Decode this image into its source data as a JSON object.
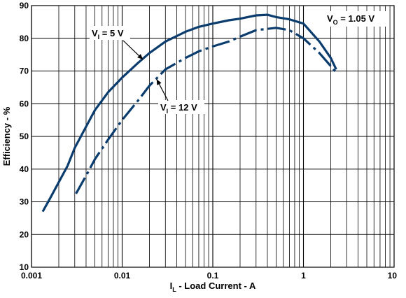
{
  "chart_data": {
    "type": "line",
    "x_scale": "log",
    "xlim": [
      0.001,
      10
    ],
    "ylim": [
      10,
      90
    ],
    "xlabel": {
      "main": "I",
      "sub": "L",
      "rest": " - Load Current - A"
    },
    "ylabel": "Efficiency - %",
    "x_ticks": [
      {
        "value": 0.001,
        "label": "0.001"
      },
      {
        "value": 0.01,
        "label": "0.01"
      },
      {
        "value": 0.1,
        "label": "0.1"
      },
      {
        "value": 1,
        "label": "1"
      },
      {
        "value": 10,
        "label": "10"
      }
    ],
    "y_ticks": [
      10,
      20,
      30,
      40,
      50,
      60,
      70,
      80,
      90
    ],
    "grid": true,
    "annotations": [
      {
        "main": "V",
        "sub": "O",
        "rest": " = 1.05 V"
      }
    ],
    "series": [
      {
        "label": {
          "main": "V",
          "sub": "I",
          "rest": " = 5 V"
        },
        "style": "solid",
        "color": "#0b3c6e",
        "points": [
          [
            0.00133,
            27
          ],
          [
            0.0016,
            31
          ],
          [
            0.002,
            36
          ],
          [
            0.0025,
            41
          ],
          [
            0.003,
            46.5
          ],
          [
            0.004,
            53
          ],
          [
            0.005,
            58
          ],
          [
            0.007,
            63.5
          ],
          [
            0.01,
            68
          ],
          [
            0.015,
            72.5
          ],
          [
            0.02,
            75.5
          ],
          [
            0.03,
            79
          ],
          [
            0.05,
            82
          ],
          [
            0.07,
            83.5
          ],
          [
            0.1,
            84.5
          ],
          [
            0.15,
            85.5
          ],
          [
            0.2,
            86
          ],
          [
            0.3,
            87
          ],
          [
            0.4,
            87.2
          ],
          [
            0.5,
            86.5
          ],
          [
            0.7,
            85.8
          ],
          [
            1,
            84.5
          ],
          [
            1.5,
            79
          ],
          [
            2,
            74
          ],
          [
            2.3,
            70.5
          ]
        ]
      },
      {
        "label": {
          "main": "V",
          "sub": "I",
          "rest": " = 12 V"
        },
        "style": "dashed",
        "color": "#0b3c6e",
        "points": [
          [
            0.0031,
            32.5
          ],
          [
            0.004,
            38
          ],
          [
            0.005,
            43
          ],
          [
            0.007,
            49
          ],
          [
            0.01,
            55
          ],
          [
            0.015,
            61
          ],
          [
            0.02,
            65.5
          ],
          [
            0.03,
            70.5
          ],
          [
            0.05,
            74
          ],
          [
            0.07,
            76
          ],
          [
            0.1,
            77.5
          ],
          [
            0.15,
            79
          ],
          [
            0.2,
            80.5
          ],
          [
            0.3,
            82.5
          ],
          [
            0.5,
            83.2
          ],
          [
            0.7,
            82.5
          ],
          [
            1,
            80
          ],
          [
            1.5,
            75.5
          ],
          [
            2,
            71.5
          ],
          [
            2.3,
            69.5
          ]
        ]
      }
    ]
  }
}
